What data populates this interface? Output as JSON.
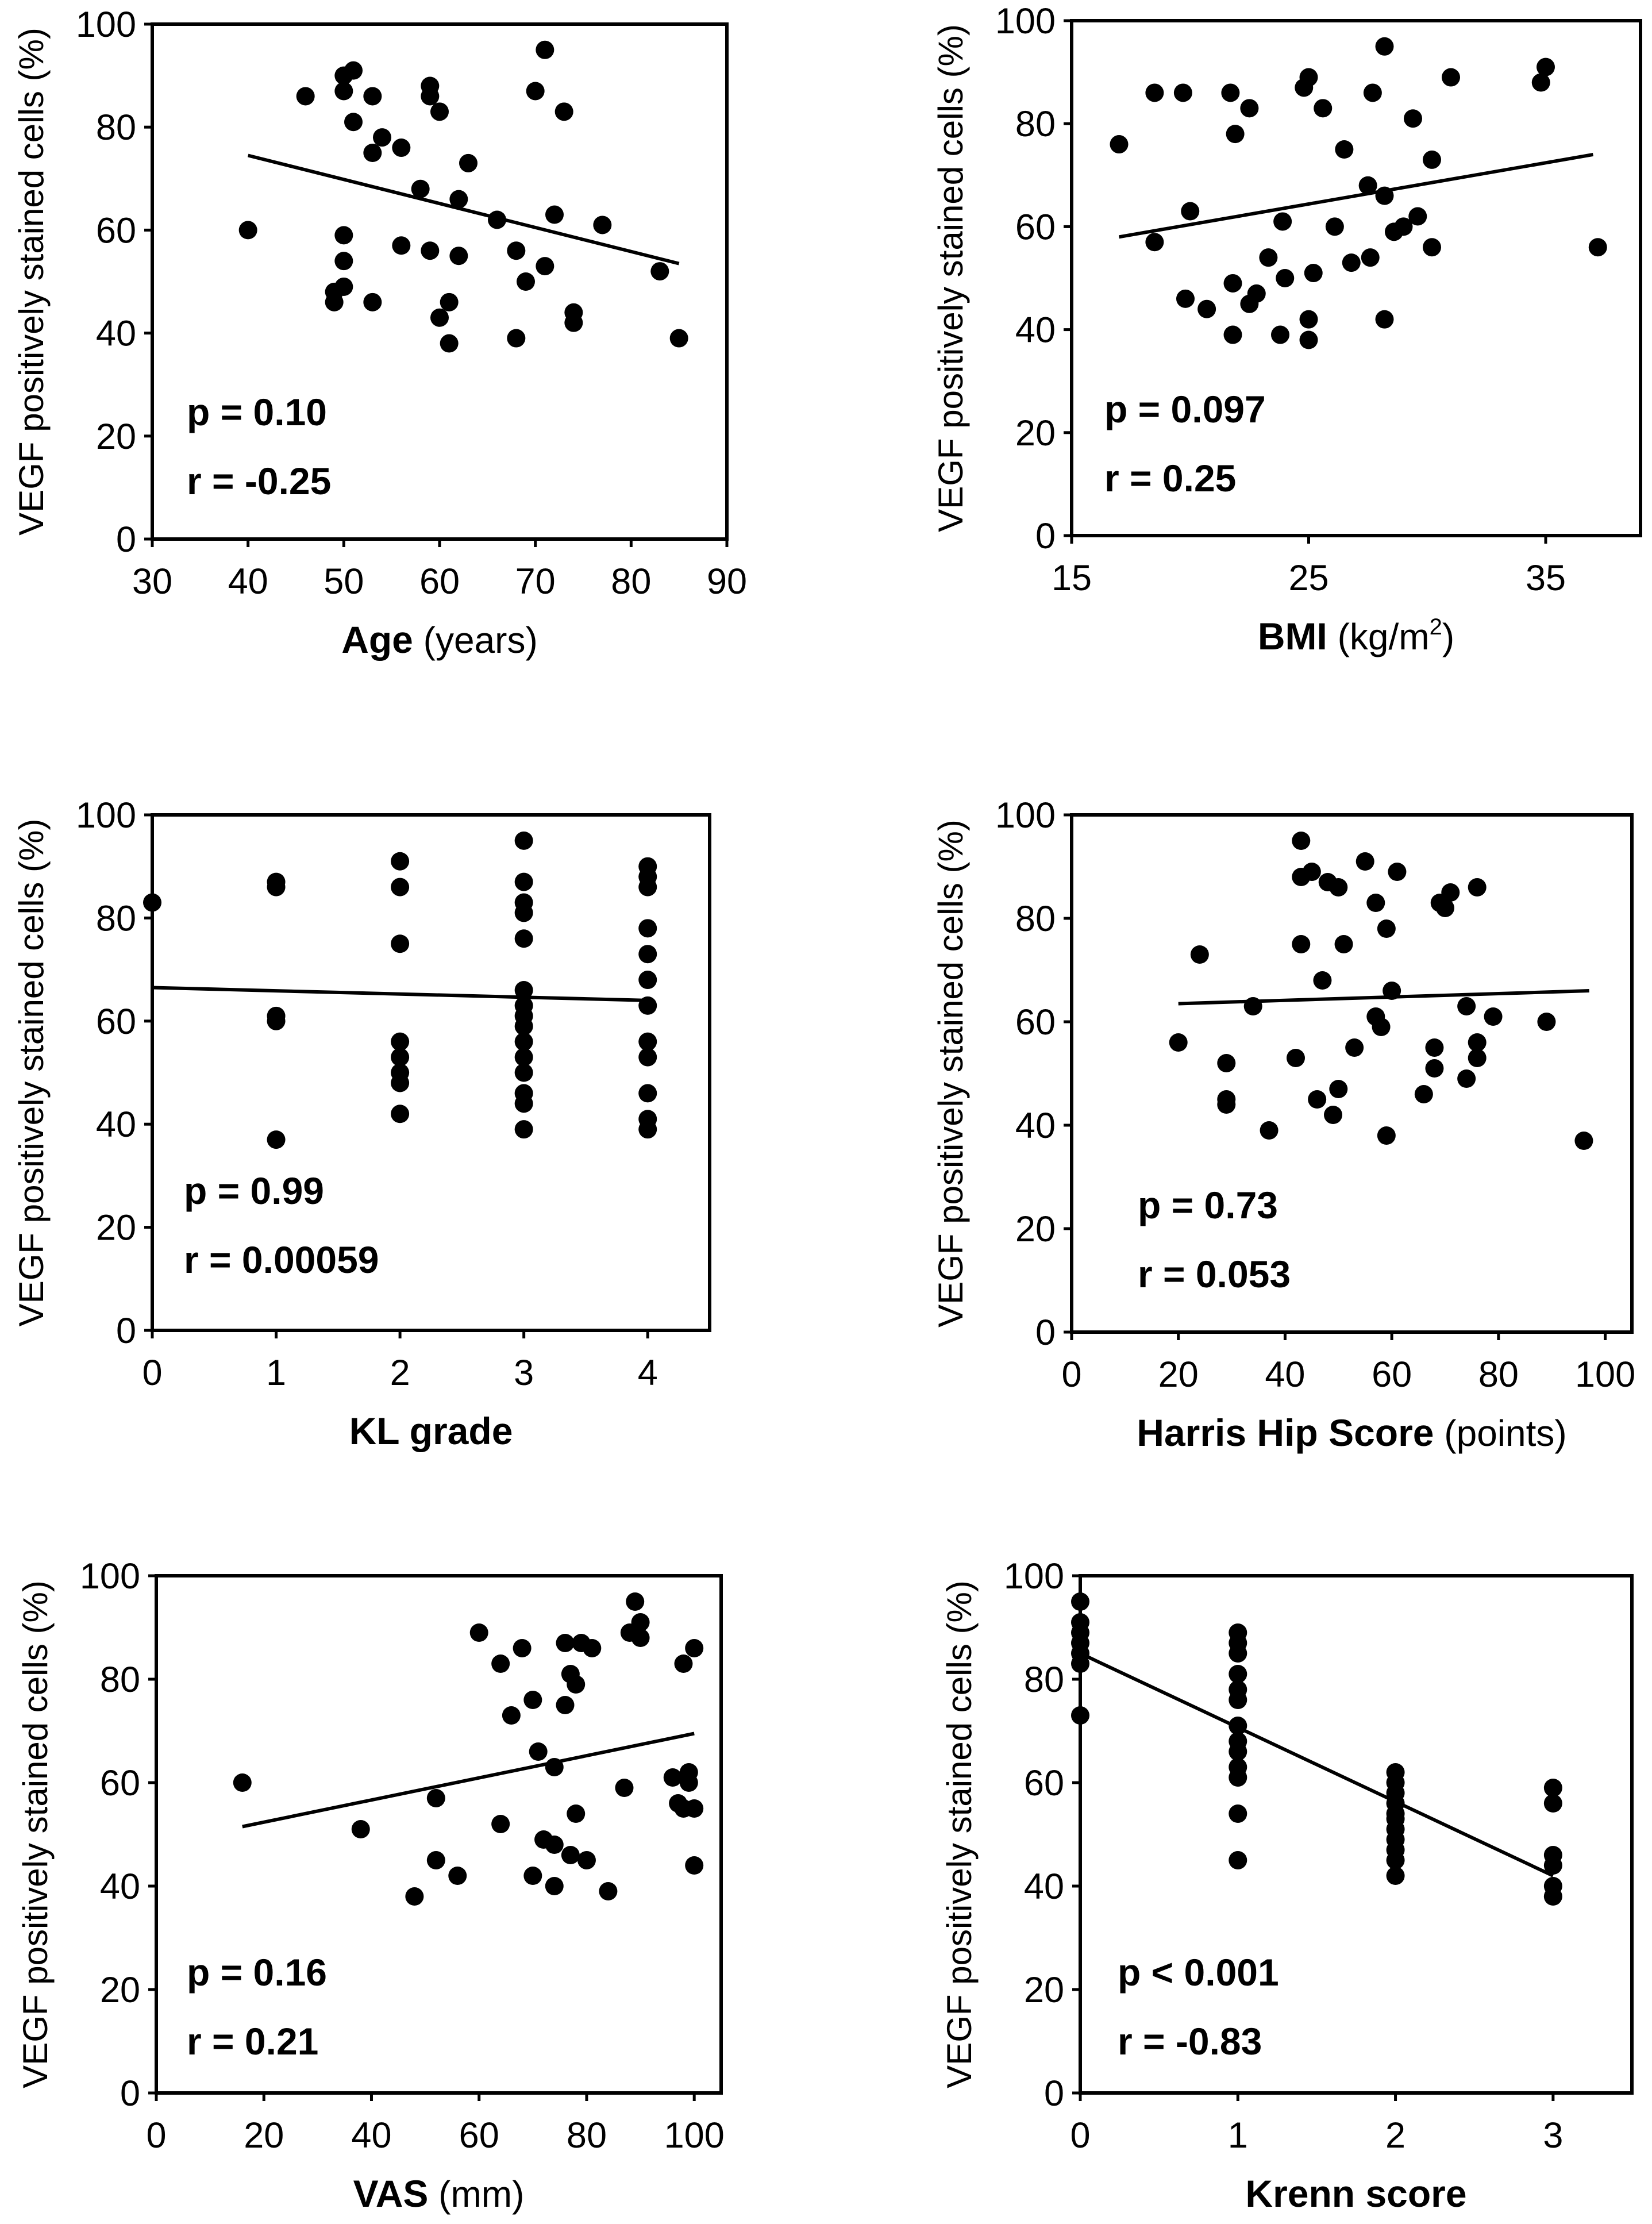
{
  "chart_data": [
    {
      "type": "scatter",
      "ylabel": "VEGF positively stained cells (%)",
      "xlabel_bold": "Age",
      "xlabel_rest": " (years)",
      "xlabel_sup": "",
      "xlabel_tail": "",
      "xlim": [
        30,
        90
      ],
      "xticks": [
        30,
        40,
        50,
        60,
        70,
        80,
        90
      ],
      "ylim": [
        0,
        100
      ],
      "yticks": [
        0,
        20,
        40,
        60,
        80,
        100
      ],
      "p_text": "p = 0.10",
      "r_text": "r = -0.25",
      "trend": [
        [
          40,
          74.5
        ],
        [
          85,
          53.5
        ]
      ],
      "points": [
        [
          40,
          60
        ],
        [
          46,
          86
        ],
        [
          49,
          46
        ],
        [
          49,
          48
        ],
        [
          50,
          49
        ],
        [
          50,
          54
        ],
        [
          50,
          59
        ],
        [
          50,
          87
        ],
        [
          50,
          90
        ],
        [
          51,
          81
        ],
        [
          51,
          91
        ],
        [
          53,
          86
        ],
        [
          53,
          75
        ],
        [
          53,
          46
        ],
        [
          54,
          78
        ],
        [
          56,
          76
        ],
        [
          56,
          57
        ],
        [
          58,
          68
        ],
        [
          59,
          56
        ],
        [
          59,
          88
        ],
        [
          59,
          86
        ],
        [
          60,
          83
        ],
        [
          60,
          43
        ],
        [
          61,
          46
        ],
        [
          61,
          38
        ],
        [
          62,
          66
        ],
        [
          62,
          55
        ],
        [
          63,
          73
        ],
        [
          66,
          62
        ],
        [
          68,
          56
        ],
        [
          68,
          39
        ],
        [
          69,
          50
        ],
        [
          70,
          87
        ],
        [
          71,
          95
        ],
        [
          71,
          53
        ],
        [
          72,
          63
        ],
        [
          73,
          83
        ],
        [
          74,
          44
        ],
        [
          74,
          42
        ],
        [
          77,
          61
        ],
        [
          83,
          52
        ],
        [
          85,
          39
        ]
      ]
    },
    {
      "type": "scatter",
      "ylabel": "VEGF positively stained cells (%)",
      "xlabel_bold": "BMI",
      "xlabel_rest": " (kg/m",
      "xlabel_sup": "2",
      "xlabel_tail": ")",
      "xlim": [
        15,
        39
      ],
      "xticks": [
        15,
        25,
        35
      ],
      "ylim": [
        0,
        100
      ],
      "yticks": [
        0,
        20,
        40,
        60,
        80,
        100
      ],
      "p_text": "p = 0.097",
      "r_text": "r = 0.25",
      "trend": [
        [
          17,
          58
        ],
        [
          37,
          74
        ]
      ],
      "points": [
        [
          17,
          76
        ],
        [
          18.5,
          86
        ],
        [
          18.5,
          57
        ],
        [
          19.7,
          86
        ],
        [
          19.8,
          46
        ],
        [
          20,
          63
        ],
        [
          20.7,
          44
        ],
        [
          21.7,
          86
        ],
        [
          21.8,
          39
        ],
        [
          21.8,
          49
        ],
        [
          21.9,
          78
        ],
        [
          22.5,
          83
        ],
        [
          22.5,
          45
        ],
        [
          22.8,
          47
        ],
        [
          23.3,
          54
        ],
        [
          23.8,
          39
        ],
        [
          23.9,
          61
        ],
        [
          24,
          50
        ],
        [
          24.8,
          87
        ],
        [
          25,
          89
        ],
        [
          25,
          42
        ],
        [
          25,
          38
        ],
        [
          25.2,
          51
        ],
        [
          25.6,
          83
        ],
        [
          26.1,
          60
        ],
        [
          26.5,
          75
        ],
        [
          26.8,
          53
        ],
        [
          27.5,
          68
        ],
        [
          27.6,
          54
        ],
        [
          27.7,
          86
        ],
        [
          28.2,
          95
        ],
        [
          28.2,
          66
        ],
        [
          28.2,
          42
        ],
        [
          28.6,
          59
        ],
        [
          29,
          60
        ],
        [
          29.4,
          81
        ],
        [
          29.6,
          62
        ],
        [
          30.2,
          73
        ],
        [
          30.2,
          56
        ],
        [
          31,
          89
        ],
        [
          34.8,
          88
        ],
        [
          35,
          91
        ],
        [
          37.2,
          56
        ]
      ]
    },
    {
      "type": "scatter",
      "ylabel": "VEGF positively stained cells (%)",
      "xlabel_bold": "KL grade",
      "xlabel_rest": "",
      "xlabel_sup": "",
      "xlabel_tail": "",
      "xlim": [
        0,
        4.5
      ],
      "xticks": [
        0,
        1,
        2,
        3,
        4
      ],
      "ylim": [
        0,
        100
      ],
      "yticks": [
        0,
        20,
        40,
        60,
        80,
        100
      ],
      "p_text": "p = 0.99",
      "r_text": "r = 0.00059",
      "trend": [
        [
          0,
          66.5
        ],
        [
          4,
          64
        ]
      ],
      "points": [
        [
          0,
          83
        ],
        [
          1,
          87
        ],
        [
          1,
          86
        ],
        [
          1,
          61
        ],
        [
          1,
          60
        ],
        [
          1,
          37
        ],
        [
          2,
          91
        ],
        [
          2,
          86
        ],
        [
          2,
          75
        ],
        [
          2,
          56
        ],
        [
          2,
          53
        ],
        [
          2,
          50
        ],
        [
          2,
          48
        ],
        [
          2,
          42
        ],
        [
          3,
          95
        ],
        [
          3,
          87
        ],
        [
          3,
          83
        ],
        [
          3,
          81
        ],
        [
          3,
          76
        ],
        [
          3,
          66
        ],
        [
          3,
          63
        ],
        [
          3,
          61
        ],
        [
          3,
          59
        ],
        [
          3,
          56
        ],
        [
          3,
          53
        ],
        [
          3,
          50
        ],
        [
          3,
          46
        ],
        [
          3,
          44
        ],
        [
          3,
          39
        ],
        [
          4,
          90
        ],
        [
          4,
          88
        ],
        [
          4,
          86
        ],
        [
          4,
          78
        ],
        [
          4,
          73
        ],
        [
          4,
          68
        ],
        [
          4,
          63
        ],
        [
          4,
          56
        ],
        [
          4,
          53
        ],
        [
          4,
          46
        ],
        [
          4,
          41
        ],
        [
          4,
          39
        ]
      ]
    },
    {
      "type": "scatter",
      "ylabel": "VEGF positively stained cells (%)",
      "xlabel_bold": "Harris Hip Score",
      "xlabel_rest": " (points)",
      "xlabel_sup": "",
      "xlabel_tail": "",
      "xlim": [
        0,
        105
      ],
      "xticks": [
        0,
        20,
        40,
        60,
        80,
        100
      ],
      "ylim": [
        0,
        100
      ],
      "yticks": [
        0,
        20,
        40,
        60,
        80,
        100
      ],
      "p_text": "p = 0.73",
      "r_text": "r = 0.053",
      "trend": [
        [
          20,
          63.5
        ],
        [
          97,
          66
        ]
      ],
      "points": [
        [
          20,
          56
        ],
        [
          24,
          73
        ],
        [
          29,
          52
        ],
        [
          29,
          45
        ],
        [
          29,
          44
        ],
        [
          34,
          63
        ],
        [
          37,
          39
        ],
        [
          42,
          53
        ],
        [
          43,
          95
        ],
        [
          43,
          88
        ],
        [
          43,
          75
        ],
        [
          45,
          89
        ],
        [
          46,
          45
        ],
        [
          47,
          68
        ],
        [
          48,
          87
        ],
        [
          49,
          42
        ],
        [
          50,
          86
        ],
        [
          50,
          47
        ],
        [
          51,
          75
        ],
        [
          53,
          55
        ],
        [
          55,
          91
        ],
        [
          57,
          83
        ],
        [
          57,
          61
        ],
        [
          58,
          59
        ],
        [
          59,
          78
        ],
        [
          59,
          38
        ],
        [
          60,
          66
        ],
        [
          61,
          89
        ],
        [
          66,
          46
        ],
        [
          68,
          55
        ],
        [
          68,
          51
        ],
        [
          69,
          83
        ],
        [
          70,
          82
        ],
        [
          71,
          85
        ],
        [
          74,
          63
        ],
        [
          74,
          49
        ],
        [
          76,
          86
        ],
        [
          76,
          56
        ],
        [
          76,
          53
        ],
        [
          79,
          61
        ],
        [
          89,
          60
        ],
        [
          96,
          37
        ]
      ]
    },
    {
      "type": "scatter",
      "ylabel": "VEGF positively stained cells (%)",
      "xlabel_bold": "VAS",
      "xlabel_rest": " (mm)",
      "xlabel_sup": "",
      "xlabel_tail": "",
      "xlim": [
        0,
        105
      ],
      "xticks": [
        0,
        20,
        40,
        60,
        80,
        100
      ],
      "ylim": [
        0,
        100
      ],
      "yticks": [
        0,
        20,
        40,
        60,
        80,
        100
      ],
      "p_text": "p = 0.16",
      "r_text": "r = 0.21",
      "trend": [
        [
          16,
          51.5
        ],
        [
          100,
          69.5
        ]
      ],
      "points": [
        [
          16,
          60
        ],
        [
          38,
          51
        ],
        [
          48,
          38
        ],
        [
          52,
          57
        ],
        [
          52,
          45
        ],
        [
          56,
          42
        ],
        [
          60,
          89
        ],
        [
          64,
          83
        ],
        [
          64,
          52
        ],
        [
          66,
          73
        ],
        [
          68,
          86
        ],
        [
          70,
          76
        ],
        [
          70,
          42
        ],
        [
          71,
          66
        ],
        [
          72,
          49
        ],
        [
          74,
          48
        ],
        [
          74,
          63
        ],
        [
          74,
          40
        ],
        [
          76,
          75
        ],
        [
          76,
          87
        ],
        [
          77,
          81
        ],
        [
          77,
          46
        ],
        [
          78,
          79
        ],
        [
          78,
          54
        ],
        [
          79,
          87
        ],
        [
          80,
          45
        ],
        [
          81,
          86
        ],
        [
          84,
          39
        ],
        [
          87,
          59
        ],
        [
          88,
          89
        ],
        [
          89,
          95
        ],
        [
          90,
          91
        ],
        [
          90,
          88
        ],
        [
          96,
          61
        ],
        [
          97,
          56
        ],
        [
          98,
          55
        ],
        [
          98,
          83
        ],
        [
          99,
          60
        ],
        [
          99,
          62
        ],
        [
          100,
          86
        ],
        [
          100,
          55
        ],
        [
          100,
          44
        ]
      ]
    },
    {
      "type": "scatter",
      "ylabel": "VEGF positively stained cells (%)",
      "xlabel_bold": "Krenn score",
      "xlabel_rest": "",
      "xlabel_sup": "",
      "xlabel_tail": "",
      "xlim": [
        0,
        3.5
      ],
      "xticks": [
        0,
        1,
        2,
        3
      ],
      "ylim": [
        0,
        100
      ],
      "yticks": [
        0,
        20,
        40,
        60,
        80,
        100
      ],
      "p_text": "p < 0.001",
      "r_text": "r = -0.83",
      "trend": [
        [
          0,
          85
        ],
        [
          3,
          42
        ]
      ],
      "points": [
        [
          0,
          95
        ],
        [
          0,
          91
        ],
        [
          0,
          89
        ],
        [
          0,
          87
        ],
        [
          0,
          85
        ],
        [
          0,
          83
        ],
        [
          0,
          73
        ],
        [
          1,
          89
        ],
        [
          1,
          87
        ],
        [
          1,
          85
        ],
        [
          1,
          81
        ],
        [
          1,
          78
        ],
        [
          1,
          76
        ],
        [
          1,
          71
        ],
        [
          1,
          68
        ],
        [
          1,
          66
        ],
        [
          1,
          63
        ],
        [
          1,
          61
        ],
        [
          1,
          54
        ],
        [
          1,
          45
        ],
        [
          2,
          62
        ],
        [
          2,
          60
        ],
        [
          2,
          58
        ],
        [
          2,
          56
        ],
        [
          2,
          54
        ],
        [
          2,
          53
        ],
        [
          2,
          51
        ],
        [
          2,
          49
        ],
        [
          2,
          47
        ],
        [
          2,
          45
        ],
        [
          2,
          42
        ],
        [
          3,
          59
        ],
        [
          3,
          56
        ],
        [
          3,
          46
        ],
        [
          3,
          44
        ],
        [
          3,
          40
        ],
        [
          3,
          38
        ]
      ]
    }
  ]
}
